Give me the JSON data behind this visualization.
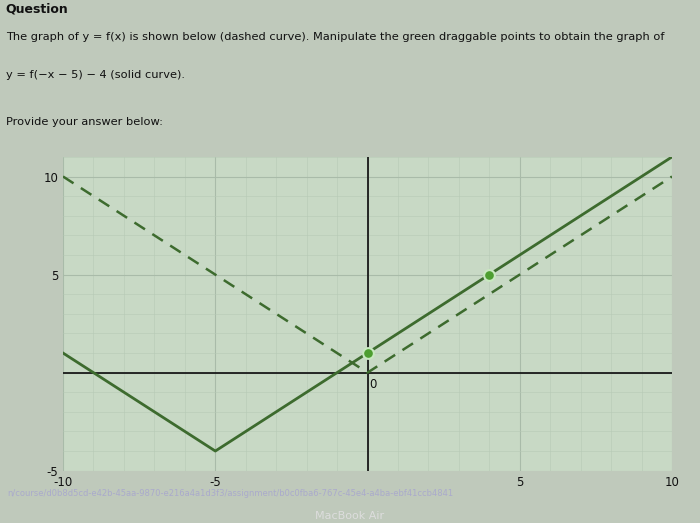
{
  "xlim": [
    -10,
    10
  ],
  "ylim": [
    -5,
    11
  ],
  "xticks": [
    -10,
    -5,
    5,
    10
  ],
  "yticks": [
    -5,
    5,
    10
  ],
  "x_origin_label": "0",
  "grid_minor_color": "#b5c9b5",
  "grid_major_color": "#a8baa8",
  "plot_bg": "#c8d9c5",
  "fig_bg": "#bfc9bb",
  "header_bg": "#bfc9bb",
  "curve_color": "#3d6b2e",
  "dot_color": "#4d9e30",
  "dot_size": 60,
  "line_width": 2.0,
  "dashed_lw": 1.8,
  "font_color": "#111111",
  "figsize": [
    7.0,
    5.23
  ],
  "dpi": 100,
  "question_text": "Question",
  "desc_line1": "The graph of y = f(x) is shown below (dashed curve). Manipulate the green draggable points to obtain the graph of",
  "desc_line2": "y = f(−x − 5) − 4 (solid curve).",
  "provide_text": "Provide your answer below:",
  "url_text": "n/course/d0b8d5cd-e42b-45aa-9870-e216a4a1d3f3/assignment/b0c0fba6-767c-45e4-a4ba-ebf41ccb4841",
  "macbook_text": "MacBook Air",
  "dot1_x": 0,
  "dot2_x": 4
}
